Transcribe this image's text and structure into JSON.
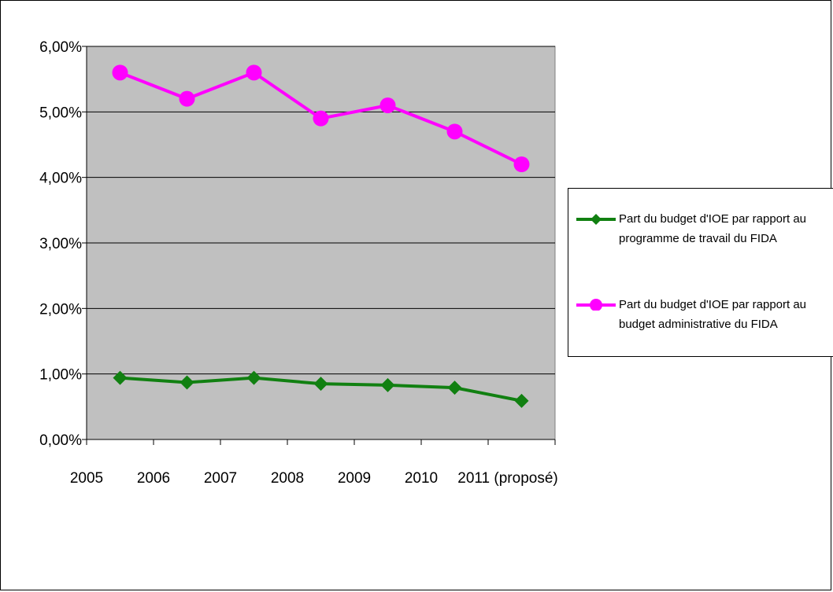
{
  "chart_data": {
    "type": "line",
    "title": "",
    "xlabel": "",
    "ylabel": "",
    "categories": [
      "2005",
      "2006",
      "2007",
      "2008",
      "2009",
      "2010",
      "2011 (proposé)"
    ],
    "ylim": [
      0,
      0.06
    ],
    "yticks": [
      "0,00%",
      "1,00%",
      "2,00%",
      "3,00%",
      "4,00%",
      "5,00%",
      "6,00%"
    ],
    "grid": "horizontal",
    "legend_position": "right",
    "series": [
      {
        "name": "Part du budget d'IOE par rapport au programme de travail du FIDA",
        "color": "#118011",
        "marker": "diamond",
        "values": [
          0.0094,
          0.0087,
          0.0094,
          0.0085,
          0.0083,
          0.0079,
          0.0059
        ]
      },
      {
        "name": "Part du budget d'IOE par rapport au budget administrative du FIDA",
        "color": "#ff00ff",
        "marker": "circle",
        "values": [
          0.056,
          0.052,
          0.056,
          0.049,
          0.051,
          0.047,
          0.042
        ]
      }
    ],
    "plot_background": "#c0c0c0"
  }
}
